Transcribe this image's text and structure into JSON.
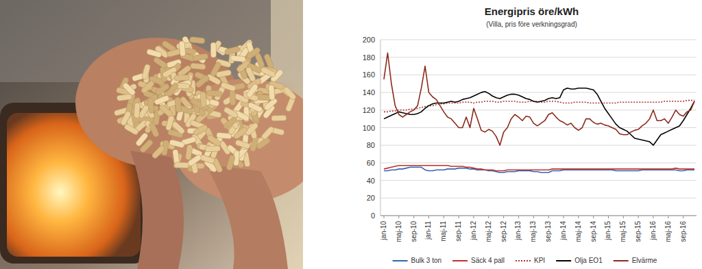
{
  "chart_data": {
    "type": "line",
    "title": "Energipris öre/kWh",
    "subtitle": "(Villa, pris före verkningsgrad)",
    "categories": [
      "jan-10",
      null,
      null,
      null,
      "maj-10",
      null,
      null,
      null,
      "sep-10",
      null,
      null,
      null,
      "jan-11",
      null,
      null,
      null,
      "maj-11",
      null,
      null,
      null,
      "sep-11",
      null,
      null,
      null,
      "jan-12",
      null,
      null,
      null,
      "maj-12",
      null,
      null,
      null,
      "sep-12",
      null,
      null,
      null,
      "jan-13",
      null,
      null,
      null,
      "maj-13",
      null,
      null,
      null,
      "sep-13",
      null,
      null,
      null,
      "jan-14",
      null,
      null,
      null,
      "maj-14",
      null,
      null,
      null,
      "sep-14",
      null,
      null,
      null,
      "jan-15",
      null,
      null,
      null,
      "maj-15",
      null,
      null,
      null,
      "sep-15",
      null,
      null,
      null,
      "jan-16",
      null,
      null,
      null,
      "maj-16",
      null,
      null,
      null,
      "sep-16",
      null,
      null,
      null
    ],
    "ylim": [
      0,
      200
    ],
    "yticks": [
      0,
      20,
      40,
      60,
      80,
      100,
      120,
      140,
      160,
      180,
      200
    ],
    "grid": true,
    "legend": "bottom",
    "series": [
      {
        "name": "Bulk 3 ton",
        "color": "#3463b0",
        "line_style": "solid",
        "values": [
          51,
          51,
          52,
          52,
          53,
          53,
          54,
          55,
          55,
          55,
          55,
          52,
          51,
          51,
          52,
          52,
          52,
          53,
          53,
          53,
          54,
          54,
          54,
          53,
          53,
          52,
          52,
          52,
          51,
          51,
          50,
          49,
          49,
          50,
          50,
          50,
          51,
          51,
          51,
          51,
          50,
          50,
          49,
          49,
          49,
          51,
          51,
          51,
          52,
          52,
          52,
          52,
          52,
          52,
          52,
          52,
          52,
          52,
          52,
          52,
          52,
          52,
          51,
          51,
          51,
          51,
          51,
          51,
          51,
          52,
          52,
          52,
          52,
          52,
          52,
          52,
          52,
          52,
          52,
          51,
          51,
          52,
          52,
          52
        ]
      },
      {
        "name": "Säck 4 pall",
        "color": "#c0302a",
        "line_style": "solid",
        "values": [
          53,
          54,
          55,
          56,
          57,
          57,
          57,
          57,
          57,
          57,
          57,
          57,
          57,
          57,
          57,
          57,
          57,
          57,
          56,
          56,
          56,
          56,
          55,
          55,
          54,
          53,
          53,
          52,
          52,
          52,
          51,
          51,
          51,
          52,
          52,
          52,
          52,
          52,
          52,
          52,
          52,
          52,
          52,
          52,
          52,
          53,
          53,
          53,
          53,
          53,
          53,
          53,
          53,
          53,
          53,
          53,
          53,
          53,
          53,
          53,
          53,
          53,
          53,
          53,
          53,
          53,
          53,
          53,
          53,
          53,
          53,
          53,
          53,
          53,
          53,
          53,
          53,
          53,
          54,
          53,
          53,
          53,
          53,
          53
        ]
      },
      {
        "name": "KPI",
        "color": "#b03030",
        "line_style": "dotted",
        "values": [
          118,
          118,
          119,
          119,
          120,
          120,
          120,
          121,
          121,
          122,
          123,
          124,
          125,
          125,
          126,
          127,
          127,
          128,
          128,
          128,
          128,
          129,
          129,
          129,
          128,
          129,
          129,
          130,
          130,
          130,
          129,
          129,
          130,
          130,
          130,
          130,
          129,
          129,
          129,
          130,
          130,
          130,
          129,
          129,
          130,
          130,
          130,
          129,
          128,
          128,
          128,
          129,
          129,
          129,
          129,
          128,
          128,
          128,
          128,
          128,
          128,
          128,
          128,
          129,
          129,
          129,
          129,
          129,
          129,
          129,
          129,
          129,
          129,
          129,
          129,
          130,
          130,
          130,
          130,
          130,
          130,
          131,
          131,
          131
        ]
      },
      {
        "name": "Olja EO1",
        "color": "#000000",
        "line_style": "solid",
        "values": [
          110,
          112,
          114,
          116,
          118,
          117,
          116,
          115,
          115,
          116,
          118,
          122,
          125,
          127,
          128,
          128,
          128,
          129,
          130,
          129,
          130,
          132,
          133,
          134,
          136,
          138,
          140,
          141,
          139,
          136,
          134,
          133,
          135,
          137,
          138,
          138,
          137,
          135,
          133,
          132,
          130,
          129,
          130,
          131,
          133,
          134,
          133,
          134,
          143,
          145,
          144,
          144,
          145,
          145,
          145,
          144,
          143,
          138,
          130,
          122,
          116,
          110,
          104,
          100,
          98,
          96,
          92,
          88,
          87,
          86,
          85,
          84,
          80,
          86,
          92,
          94,
          96,
          98,
          100,
          102,
          108,
          115,
          122,
          130
        ]
      },
      {
        "name": "Elvärme",
        "color": "#8b2a1c",
        "line_style": "solid",
        "values": [
          155,
          185,
          150,
          125,
          115,
          112,
          115,
          118,
          120,
          125,
          145,
          170,
          140,
          135,
          132,
          125,
          118,
          112,
          110,
          105,
          100,
          100,
          112,
          100,
          122,
          110,
          97,
          95,
          98,
          96,
          90,
          80,
          95,
          100,
          110,
          115,
          112,
          108,
          113,
          112,
          105,
          102,
          105,
          108,
          115,
          117,
          112,
          108,
          106,
          103,
          105,
          100,
          97,
          100,
          110,
          110,
          106,
          104,
          105,
          103,
          102,
          100,
          98,
          93,
          92,
          92,
          95,
          97,
          98,
          102,
          105,
          110,
          120,
          108,
          108,
          110,
          105,
          112,
          120,
          115,
          113,
          118,
          120,
          130
        ]
      }
    ]
  }
}
